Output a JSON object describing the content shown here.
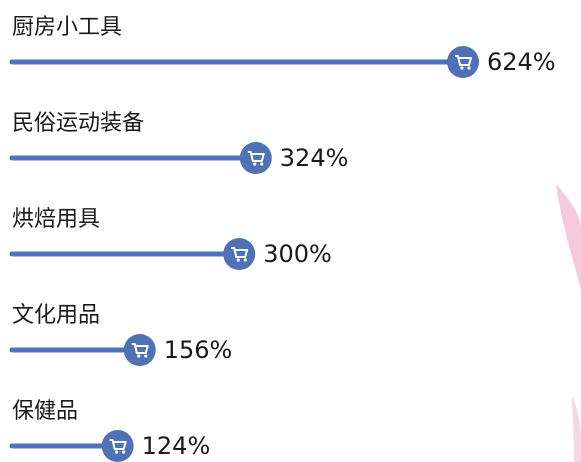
{
  "chart_data": {
    "type": "lollipop",
    "categories": [
      "厨房小工具",
      "民俗运动装备",
      "烘焙用具",
      "文化用品",
      "保健品"
    ],
    "values": [
      624,
      324,
      300,
      156,
      124
    ],
    "value_labels": [
      "624%",
      "324%",
      "300%",
      "156%",
      "124%"
    ],
    "color": "#4f71b5"
  }
}
